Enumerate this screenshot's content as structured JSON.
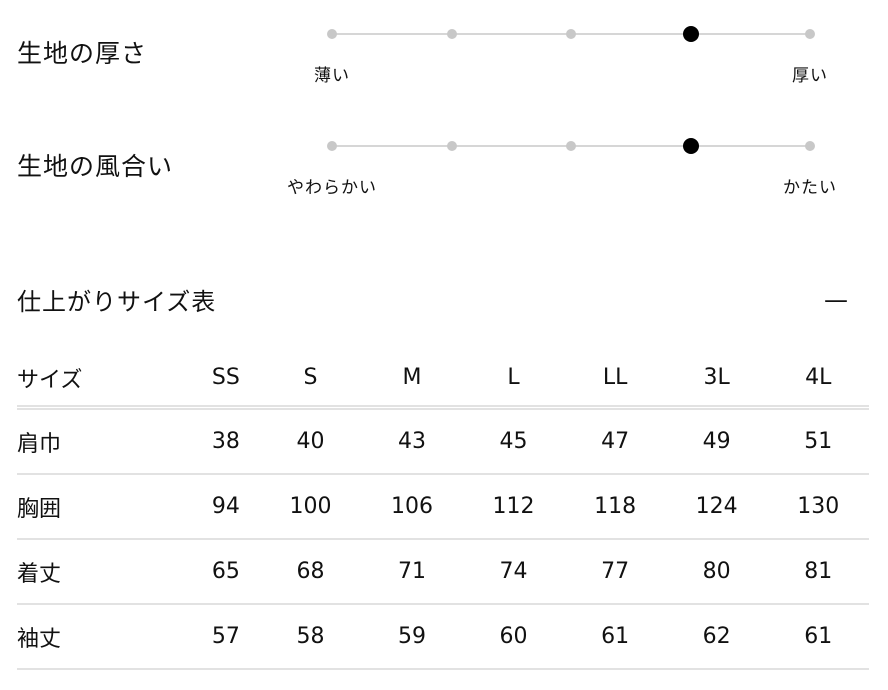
{
  "attributes": [
    {
      "title": "生地の厚さ",
      "left_label": "薄い",
      "right_label": "厚い",
      "levels": 5,
      "selected": 4
    },
    {
      "title": "生地の風合い",
      "left_label": "やわらかい",
      "right_label": "かたい",
      "levels": 5,
      "selected": 4
    }
  ],
  "size_table": {
    "title": "仕上がりサイズ表",
    "collapse_label": "—",
    "headers": [
      "サイズ",
      "SS",
      "S",
      "M",
      "L",
      "LL",
      "3L",
      "4L"
    ],
    "rows": [
      [
        "肩巾",
        "38",
        "40",
        "43",
        "45",
        "47",
        "49",
        "51"
      ],
      [
        "胸囲",
        "94",
        "100",
        "106",
        "112",
        "118",
        "124",
        "130"
      ],
      [
        "着丈",
        "65",
        "68",
        "71",
        "74",
        "77",
        "80",
        "81"
      ],
      [
        "袖丈",
        "57",
        "58",
        "59",
        "60",
        "61",
        "62",
        "61"
      ]
    ]
  }
}
